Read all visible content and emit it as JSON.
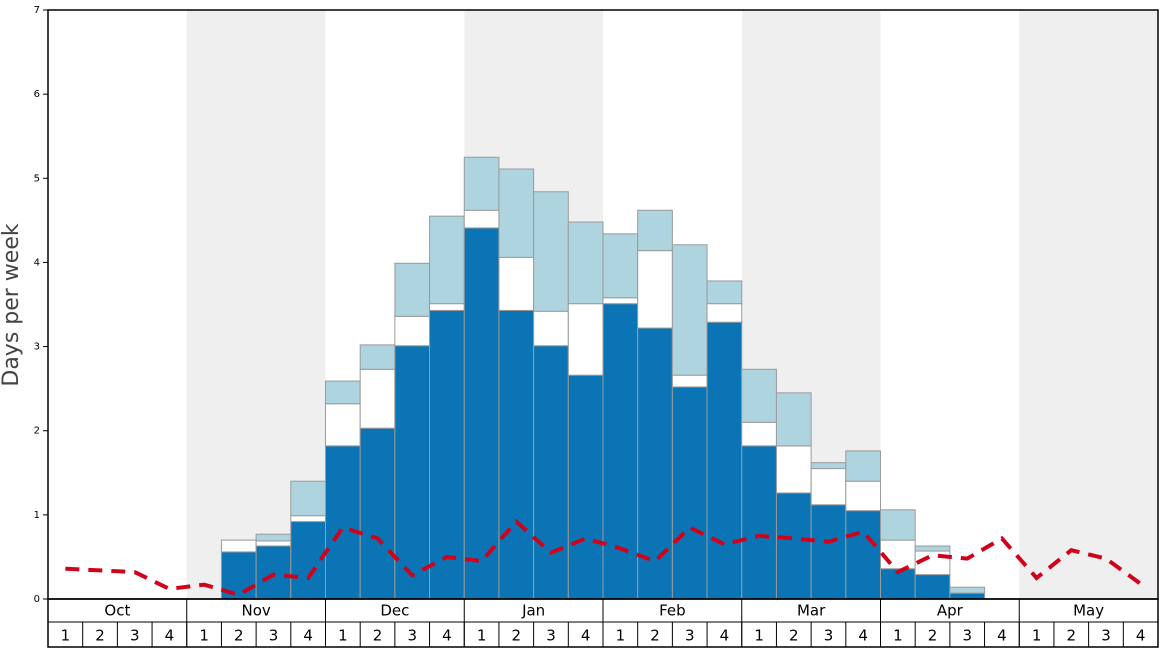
{
  "chart_data": {
    "type": "bar",
    "y_label": "Days per week",
    "months": [
      "Oct",
      "Nov",
      "Dec",
      "Jan",
      "Feb",
      "Mar",
      "Apr",
      "May"
    ],
    "categories": [
      "1",
      "2",
      "3",
      "4",
      "1",
      "2",
      "3",
      "4",
      "1",
      "2",
      "3",
      "4",
      "1",
      "2",
      "3",
      "4",
      "1",
      "2",
      "3",
      "4",
      "1",
      "2",
      "3",
      "4",
      "1",
      "2",
      "3",
      "4",
      "1",
      "2",
      "3",
      "4"
    ],
    "series": [
      {
        "color": "#0a74b4",
        "values": [
          null,
          null,
          null,
          null,
          null,
          0.56,
          0.63,
          0.92,
          1.82,
          2.03,
          3.01,
          3.43,
          4.41,
          3.43,
          3.01,
          2.66,
          3.51,
          3.22,
          2.52,
          3.29,
          1.82,
          1.26,
          1.12,
          1.05,
          0.36,
          0.29,
          0.07,
          null,
          null,
          null,
          null,
          null
        ]
      },
      {
        "color": "#ffffff",
        "values": [
          null,
          null,
          null,
          null,
          null,
          0.14,
          0.06,
          0.07,
          0.5,
          0.7,
          0.35,
          0.08,
          0.21,
          0.63,
          0.41,
          0.85,
          0.07,
          0.92,
          0.14,
          0.22,
          0.28,
          0.56,
          0.43,
          0.35,
          0.34,
          0.28,
          0,
          null,
          null,
          null,
          null,
          null
        ]
      },
      {
        "color": "#aed4e0",
        "values": [
          null,
          null,
          null,
          null,
          null,
          0,
          0.08,
          0.41,
          0.27,
          0.29,
          0.63,
          1.04,
          0.63,
          1.05,
          1.42,
          0.97,
          0.76,
          0.48,
          1.55,
          0.27,
          0.63,
          0.63,
          0.07,
          0.36,
          0.36,
          0.06,
          0.07,
          null,
          null,
          null,
          null,
          null
        ]
      }
    ],
    "line": {
      "color": "#d0021b",
      "values": [
        0.36,
        0.34,
        0.32,
        0.12,
        0.17,
        0.05,
        0.29,
        0.25,
        0.85,
        0.72,
        0.28,
        0.5,
        0.45,
        0.92,
        0.55,
        0.72,
        0.6,
        0.45,
        0.85,
        0.65,
        0.75,
        0.72,
        0.68,
        0.8,
        0.32,
        0.52,
        0.48,
        0.72,
        0.25,
        0.58,
        0.48,
        0.18
      ]
    },
    "ylim": [
      0,
      7
    ],
    "yticks": [
      0,
      1,
      2,
      3,
      4,
      5,
      6,
      7
    ],
    "grid": false,
    "shade_color": "#efefef"
  }
}
